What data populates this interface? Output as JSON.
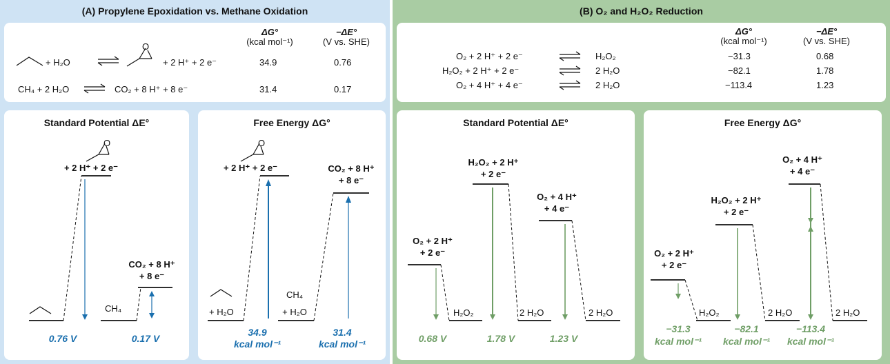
{
  "panel_a": {
    "title": "(A) Propylene Epoxidation vs. Methane Oxidation",
    "table": {
      "col_dg": "ΔG°",
      "col_dg_unit": "(kcal mol⁻¹)",
      "col_de": "−ΔE°",
      "col_de_unit": "(V vs. SHE)",
      "rows": [
        {
          "left": "+ H₂O",
          "right": "+ 2 H⁺ + 2 e⁻",
          "dg": "34.9",
          "de": "0.76"
        },
        {
          "left": "CH₄ + 2 H₂O",
          "right": "CO₂ + 8 H⁺ + 8 e⁻",
          "dg": "31.4",
          "de": "0.17"
        }
      ]
    },
    "potential": {
      "title": "Standard Potential ΔE°",
      "epox_level": "+ 2 H⁺ + 2 e⁻",
      "co2_level_1": "CO₂ + 8 H⁺",
      "co2_level_2": "+ 8 e⁻",
      "ch4_label": "CH₄",
      "value_1": "0.76 V",
      "value_2": "0.17 V"
    },
    "free_energy": {
      "title": "Free Energy ΔG°",
      "epox_level": "+ 2 H⁺ + 2 e⁻",
      "co2_level_1": "CO₂ + 8 H⁺",
      "co2_level_2": "+ 8 e⁻",
      "h2o_label": "+ H₂O",
      "ch4_label_1": "CH₄",
      "ch4_label_2": "+ H₂O",
      "value_1a": "34.9",
      "value_1b": "kcal mol⁻¹",
      "value_2a": "31.4",
      "value_2b": "kcal mol⁻¹"
    }
  },
  "panel_b": {
    "title": "(B) O₂ and H₂O₂ Reduction",
    "table": {
      "col_dg": "ΔG°",
      "col_dg_unit": "(kcal mol⁻¹)",
      "col_de": "−ΔE°",
      "col_de_unit": "(V vs. SHE)",
      "rows": [
        {
          "left": "O₂ + 2 H⁺ + 2 e⁻",
          "right": "H₂O₂",
          "dg": "−31.3",
          "de": "0.68"
        },
        {
          "left": "H₂O₂ + 2 H⁺ + 2 e⁻",
          "right": "2 H₂O",
          "dg": "−82.1",
          "de": "1.78"
        },
        {
          "left": "O₂ + 4 H⁺ + 4 e⁻",
          "right": "2 H₂O",
          "dg": "−113.4",
          "de": "1.23"
        }
      ]
    },
    "potential": {
      "title": "Standard Potential ΔE°",
      "o2_1": "O₂ + 2 H⁺",
      "o2_2": "+ 2 e⁻",
      "h2o2_1": "H₂O₂ + 2 H⁺",
      "h2o2_2": "+ 2 e⁻",
      "o24_1": "O₂ + 4 H⁺",
      "o24_2": "+ 4 e⁻",
      "p_h2o2": "H₂O₂",
      "p_h2o_a": "2 H₂O",
      "p_h2o_b": "2 H₂O",
      "value_1": "0.68 V",
      "value_2": "1.78 V",
      "value_3": "1.23 V"
    },
    "free_energy": {
      "title": "Free Energy ΔG°",
      "o2_1": "O₂ + 2 H⁺",
      "o2_2": "+ 2 e⁻",
      "h2o2_1": "H₂O₂ + 2 H⁺",
      "h2o2_2": "+ 2 e⁻",
      "o24_1": "O₂ + 4 H⁺",
      "o24_2": "+ 4 e⁻",
      "p_h2o2": "H₂O₂",
      "p_h2o_a": "2 H₂O",
      "p_h2o_b": "2 H₂O",
      "value_1a": "−31.3",
      "value_1b": "kcal mol⁻¹",
      "value_2a": "−82.1",
      "value_2b": "kcal mol⁻¹",
      "value_3a": "−113.4",
      "value_3b": "kcal mol⁻¹"
    }
  },
  "colors": {
    "blue": "#1a6fae",
    "green": "#6f9e66",
    "panel_a_bg": "#cfe3f4",
    "panel_b_bg": "#a9cca3"
  }
}
